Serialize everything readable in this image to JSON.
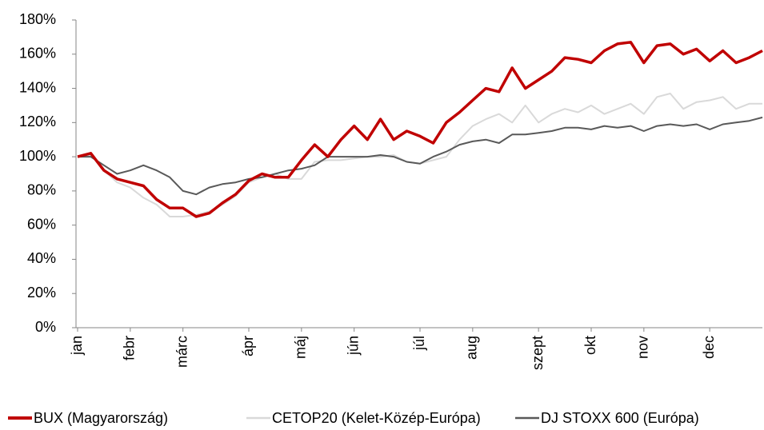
{
  "chart_data": {
    "type": "line",
    "categories": [
      "jan",
      null,
      null,
      null,
      "febr",
      null,
      null,
      null,
      "márc",
      null,
      null,
      null,
      null,
      "ápr",
      null,
      null,
      null,
      "máj",
      null,
      null,
      null,
      "jún",
      null,
      null,
      null,
      null,
      "júl",
      null,
      null,
      null,
      "aug",
      null,
      null,
      null,
      null,
      "szept",
      null,
      null,
      null,
      "okt",
      null,
      null,
      null,
      "nov",
      null,
      null,
      null,
      null,
      "dec",
      null,
      null,
      null,
      null
    ],
    "series": [
      {
        "name": "BUX (Magyarország)",
        "color": "#c00000",
        "values": [
          100,
          102,
          92,
          87,
          85,
          83,
          75,
          70,
          70,
          65,
          67,
          73,
          78,
          86,
          90,
          88,
          88,
          98,
          107,
          100,
          110,
          118,
          110,
          122,
          110,
          115,
          112,
          108,
          120,
          126,
          133,
          140,
          138,
          152,
          140,
          145,
          150,
          158,
          157,
          155,
          162,
          166,
          167,
          155,
          165,
          166,
          160,
          163,
          156,
          162,
          155,
          158,
          162
        ]
      },
      {
        "name": "CETOP20 (Kelet-Közép-Európa)",
        "color": "#d9d9d9",
        "values": [
          100,
          101,
          92,
          85,
          82,
          76,
          72,
          65,
          65,
          66,
          68,
          72,
          77,
          85,
          88,
          90,
          87,
          87,
          97,
          98,
          98,
          99,
          100,
          100,
          101,
          97,
          96,
          98,
          100,
          110,
          118,
          122,
          125,
          120,
          130,
          120,
          125,
          128,
          126,
          130,
          125,
          128,
          131,
          125,
          135,
          137,
          128,
          132,
          133,
          135,
          128,
          131,
          131
        ]
      },
      {
        "name": "DJ STOXX 600 (Európa)",
        "color": "#595959",
        "values": [
          100,
          100,
          95,
          90,
          92,
          95,
          92,
          88,
          80,
          78,
          82,
          84,
          85,
          87,
          88,
          90,
          92,
          93,
          95,
          100,
          100,
          100,
          100,
          101,
          100,
          97,
          96,
          100,
          103,
          107,
          109,
          110,
          108,
          113,
          113,
          114,
          115,
          117,
          117,
          116,
          118,
          117,
          118,
          115,
          118,
          119,
          118,
          119,
          116,
          119,
          120,
          121,
          123
        ]
      }
    ],
    "ylim": [
      0,
      180
    ],
    "yticks": [
      {
        "value": 0,
        "label": "0%"
      },
      {
        "value": 20,
        "label": "20%"
      },
      {
        "value": 40,
        "label": "40%"
      },
      {
        "value": 60,
        "label": "60%"
      },
      {
        "value": 80,
        "label": "80%"
      },
      {
        "value": 100,
        "label": "100%"
      },
      {
        "value": 120,
        "label": "120%"
      },
      {
        "value": 140,
        "label": "140%"
      },
      {
        "value": 160,
        "label": "160%"
      },
      {
        "value": 180,
        "label": "180%"
      }
    ],
    "legend": "bottom"
  }
}
